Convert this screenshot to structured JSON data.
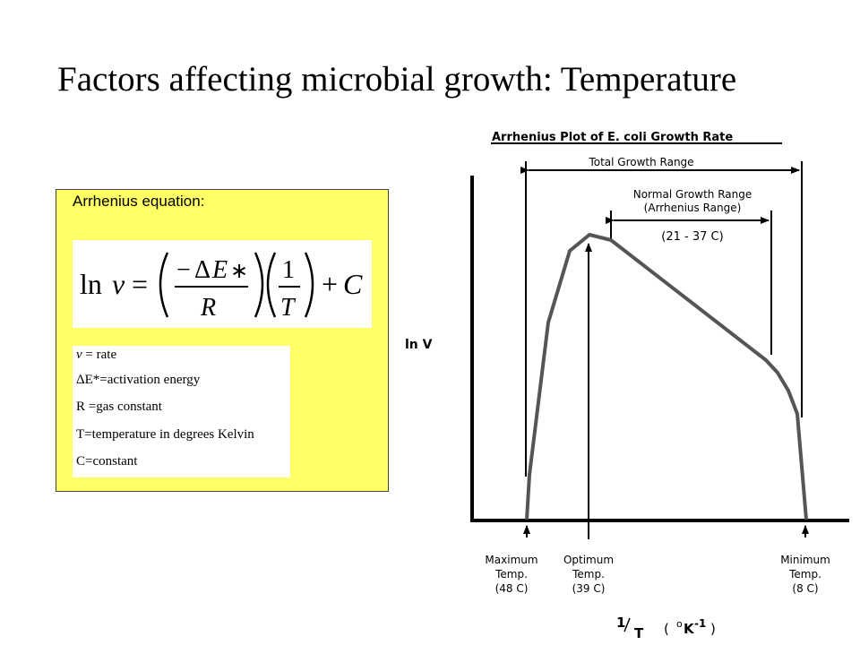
{
  "title": "Factors affecting microbial growth: Temperature",
  "equation_box": {
    "label": "Arrhenius equation:",
    "definitions": [
      {
        "symbol": "v",
        "text": " = rate"
      },
      {
        "symbol": "",
        "text": "ΔE*=activation energy"
      },
      {
        "symbol": "",
        "text": "R =gas constant"
      },
      {
        "symbol": "",
        "text": "T=temperature in degrees Kelvin"
      },
      {
        "symbol": "",
        "text": "C=constant"
      }
    ]
  },
  "chart": {
    "title": "Arrhenius Plot of E. coli Growth Rate",
    "y_label": "ln V",
    "x_label_num": "1",
    "x_label_den": "T",
    "x_unit": "( ",
    "x_unit_deg": "o",
    "x_unit_k": "K",
    "x_unit_exp": "-1",
    "x_unit_close": ")",
    "total_range": "Total Growth Range",
    "normal_range_line1": "Normal Growth Range",
    "normal_range_line2": "(Arrhenius Range)",
    "normal_range_temps": "(21 - 37 C)",
    "markers": [
      {
        "line1": "Maximum",
        "line2": "Temp.",
        "line3": "(48 C)"
      },
      {
        "line1": "Optimum",
        "line2": "Temp.",
        "line3": "(39 C)"
      },
      {
        "line1": "Minimum",
        "line2": "Temp.",
        "line3": "(8 C)"
      }
    ]
  }
}
